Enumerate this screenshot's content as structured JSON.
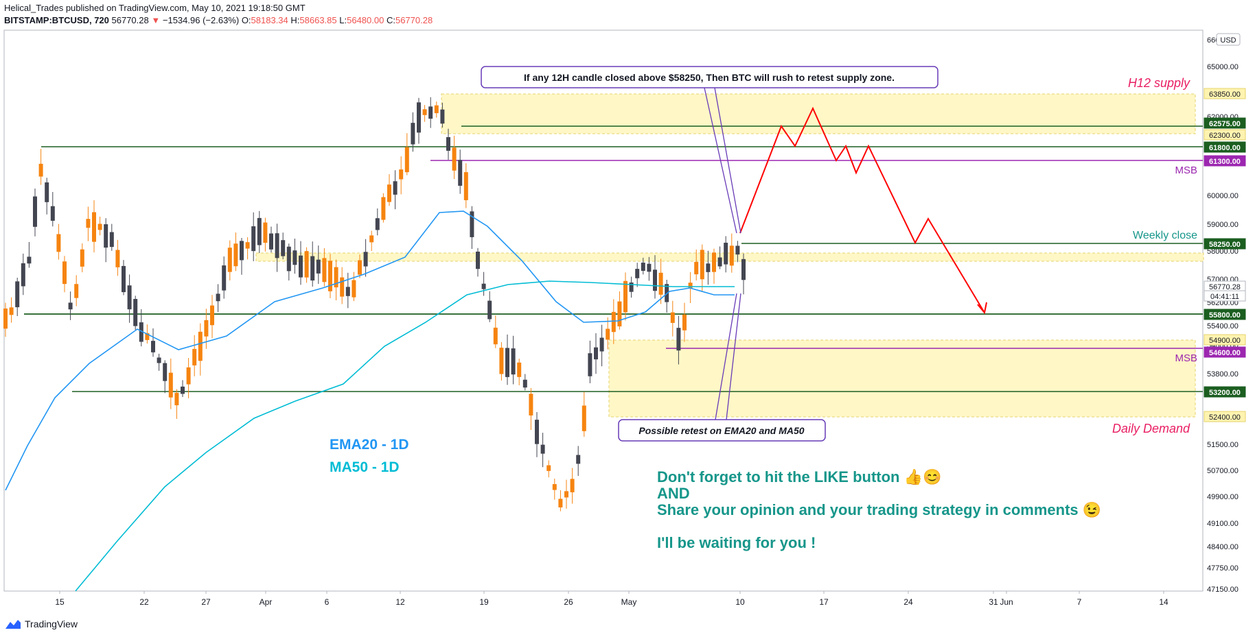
{
  "header": {
    "line1": "Helical_Trades published on TradingView.com, May 10, 2021 19:18:50 GMT",
    "symbol": "BITSTAMP:BTCUSD, 720",
    "last": "56770.28",
    "change": "−1534.96 (−2.63%)",
    "o_label": "O:",
    "o": "58183.34",
    "h_label": "H:",
    "h": "58663.85",
    "l_label": "L:",
    "l": "56480.00",
    "c_label": "C:",
    "c": "56770.28"
  },
  "footer": {
    "brand": "TradingView"
  },
  "colors": {
    "bull": "#f68410",
    "bear": "#434651",
    "ema": "#2196f3",
    "ma": "#00bcd4",
    "level": "#1b5e20",
    "msb": "#9c27b0",
    "zone": "#fff7c6",
    "arrow": "#ff0000",
    "teal": "#16968a",
    "pink": "#e91e63"
  },
  "chart_data": {
    "type": "candlestick",
    "symbol": "BITSTAMP:BTCUSD",
    "interval": "720",
    "currency_label": "USD",
    "x_ticks": [
      "15",
      "22",
      "27",
      "Apr",
      "6",
      "12",
      "19",
      "26",
      "May",
      "10",
      "17",
      "24",
      "31",
      "Jun",
      "7",
      "14"
    ],
    "y_ticks": [
      "66000.00",
      "65000.00",
      "62000.00",
      "60000.00",
      "59000.00",
      "58000.00",
      "57000.00",
      "56200.00",
      "55400.00",
      "54800.00",
      "53800.00",
      "51500.00",
      "50700.00",
      "49900.00",
      "49100.00",
      "48400.00",
      "47750.00",
      "47150.00"
    ],
    "price_labels": [
      {
        "value": "63850.00",
        "style": "zone"
      },
      {
        "value": "62575.00",
        "style": "level"
      },
      {
        "value": "62300.00",
        "style": "zone"
      },
      {
        "value": "61800.00",
        "style": "level"
      },
      {
        "value": "61300.00",
        "style": "msb"
      },
      {
        "value": "58250.00",
        "style": "level"
      },
      {
        "value": "56770.28",
        "style": "last"
      },
      {
        "value": "04:41:11",
        "style": "timer"
      },
      {
        "value": "55800.00",
        "style": "level"
      },
      {
        "value": "54900.00",
        "style": "zone"
      },
      {
        "value": "54600.00",
        "style": "msb"
      },
      {
        "value": "53200.00",
        "style": "level"
      },
      {
        "value": "52400.00",
        "style": "zone"
      }
    ],
    "zones": [
      {
        "name": "H12 supply",
        "from": 62300,
        "to": 63850
      },
      {
        "name": "Daily Demand",
        "from": 52400,
        "to": 54900
      },
      {
        "name": "Weekly close zone",
        "from": 57700,
        "to": 58000
      }
    ],
    "levels": [
      62575,
      61800,
      58250,
      55800,
      53200
    ],
    "msb_levels": [
      61300,
      54600
    ],
    "series": [
      {
        "name": "EMA20 - 1D"
      },
      {
        "name": "MA50 - 1D"
      }
    ],
    "annotations": {
      "supply_label": "H12 supply",
      "demand_label": "Daily Demand",
      "weekly_close": "Weekly close",
      "msb": "MSB",
      "callout_top": "If any 12H candle closed above $58250, Then BTC will rush to retest supply zone.",
      "callout_bottom": "Possible retest on EMA20 and MA50",
      "cta_line1": "Don't forget to hit the LIKE button 👍😊",
      "cta_line2": "AND",
      "cta_line3": "Share your opinion and your trading strategy in comments 😉",
      "cta_line4": "I'll be waiting for you !"
    }
  }
}
